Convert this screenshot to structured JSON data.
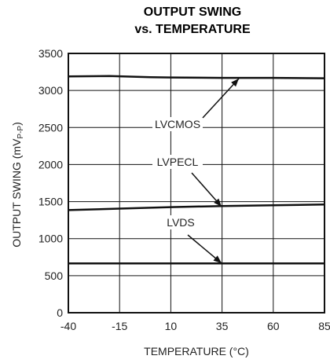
{
  "chart_data": {
    "type": "line",
    "title_lines": [
      "OUTPUT SWING",
      "vs. TEMPERATURE"
    ],
    "xlabel": "TEMPERATURE (°C)",
    "ylabel_parts": [
      "OUTPUT SWING (mV",
      "P-P",
      ")"
    ],
    "xlim": [
      -40,
      85
    ],
    "ylim": [
      0,
      3500
    ],
    "x_ticks": [
      -40,
      -15,
      10,
      35,
      60,
      85
    ],
    "y_ticks": [
      0,
      500,
      1000,
      1500,
      2000,
      2500,
      3000,
      3500
    ],
    "grid": true,
    "series": [
      {
        "name": "LVCMOS",
        "x": [
          -40,
          -20,
          0,
          10,
          35,
          60,
          85
        ],
        "values": [
          3190,
          3195,
          3180,
          3175,
          3170,
          3170,
          3165
        ]
      },
      {
        "name": "LVPECL",
        "x": [
          -40,
          -15,
          10,
          35,
          60,
          85
        ],
        "values": [
          1385,
          1405,
          1425,
          1440,
          1450,
          1460
        ]
      },
      {
        "name": "LVDS",
        "x": [
          -40,
          -15,
          10,
          35,
          60,
          85
        ],
        "values": [
          665,
          665,
          665,
          665,
          665,
          665
        ]
      }
    ],
    "annotations": [
      {
        "text": "LVCMOS",
        "target_series": "LVCMOS"
      },
      {
        "text": "LVPECL",
        "target_series": "LVPECL"
      },
      {
        "text": "LVDS",
        "target_series": "LVDS"
      }
    ]
  }
}
